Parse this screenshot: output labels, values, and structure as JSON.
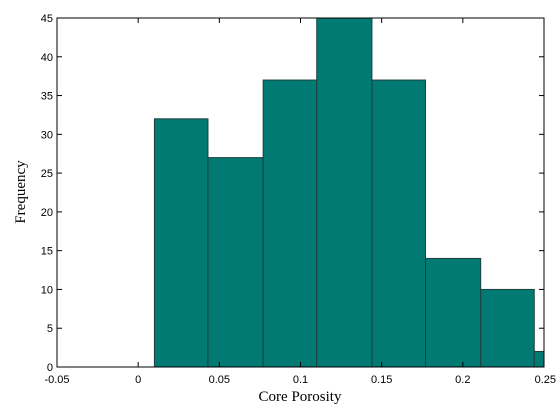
{
  "chart_data": {
    "type": "bar",
    "title": "",
    "xlabel": "Core Porosity",
    "ylabel": "Frequency",
    "xlim": [
      -0.05,
      0.25
    ],
    "ylim": [
      0,
      45
    ],
    "grid": false,
    "bar_color": "#007a73",
    "bins": [
      {
        "x0": 0.01,
        "x1": 0.043,
        "value": 32
      },
      {
        "x0": 0.043,
        "x1": 0.077,
        "value": 27
      },
      {
        "x0": 0.077,
        "x1": 0.11,
        "value": 37
      },
      {
        "x0": 0.11,
        "x1": 0.144,
        "value": 45
      },
      {
        "x0": 0.144,
        "x1": 0.177,
        "value": 37
      },
      {
        "x0": 0.177,
        "x1": 0.211,
        "value": 14
      },
      {
        "x0": 0.211,
        "x1": 0.244,
        "value": 10
      },
      {
        "x0": 0.244,
        "x1": 0.25,
        "value": 2
      }
    ],
    "xticks": [
      {
        "value": -0.05,
        "label": "-0.05"
      },
      {
        "value": 0,
        "label": "0"
      },
      {
        "value": 0.05,
        "label": "0.05"
      },
      {
        "value": 0.1,
        "label": "0.1"
      },
      {
        "value": 0.15,
        "label": "0.15"
      },
      {
        "value": 0.2,
        "label": "0.2"
      },
      {
        "value": 0.25,
        "label": "0.25"
      }
    ],
    "yticks": [
      {
        "value": 0,
        "label": "0"
      },
      {
        "value": 5,
        "label": "5"
      },
      {
        "value": 10,
        "label": "10"
      },
      {
        "value": 15,
        "label": "15"
      },
      {
        "value": 20,
        "label": "20"
      },
      {
        "value": 25,
        "label": "25"
      },
      {
        "value": 30,
        "label": "30"
      },
      {
        "value": 35,
        "label": "35"
      },
      {
        "value": 40,
        "label": "40"
      },
      {
        "value": 45,
        "label": "45"
      }
    ]
  }
}
